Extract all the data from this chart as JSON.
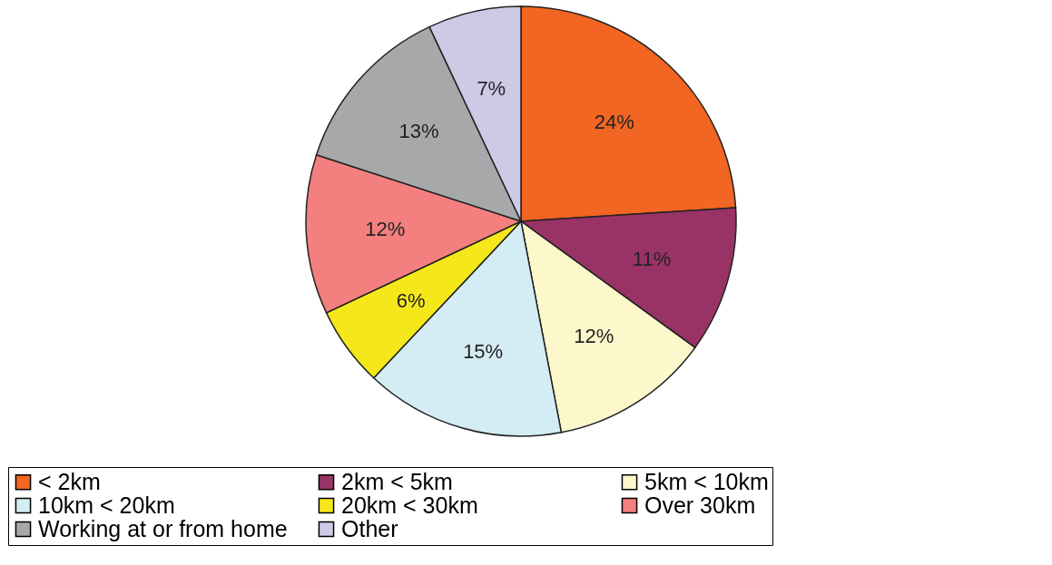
{
  "chart_data": {
    "type": "pie",
    "categories": [
      "< 2km",
      "2km < 5km",
      "5km < 10km",
      "10km < 20km",
      "20km < 30km",
      "Over 30km",
      "Working at or from home",
      "Other"
    ],
    "values": [
      24,
      11,
      12,
      15,
      6,
      12,
      13,
      7
    ],
    "value_labels": [
      "24%",
      "11%",
      "12%",
      "15%",
      "6%",
      "12%",
      "13%",
      "7%"
    ],
    "colors": [
      "#f26522",
      "#993366",
      "#fdf8cc",
      "#d4ecf3",
      "#f5e81a",
      "#f37f7f",
      "#a6a8aa",
      "#cdcae6"
    ],
    "legend": "bottom"
  }
}
